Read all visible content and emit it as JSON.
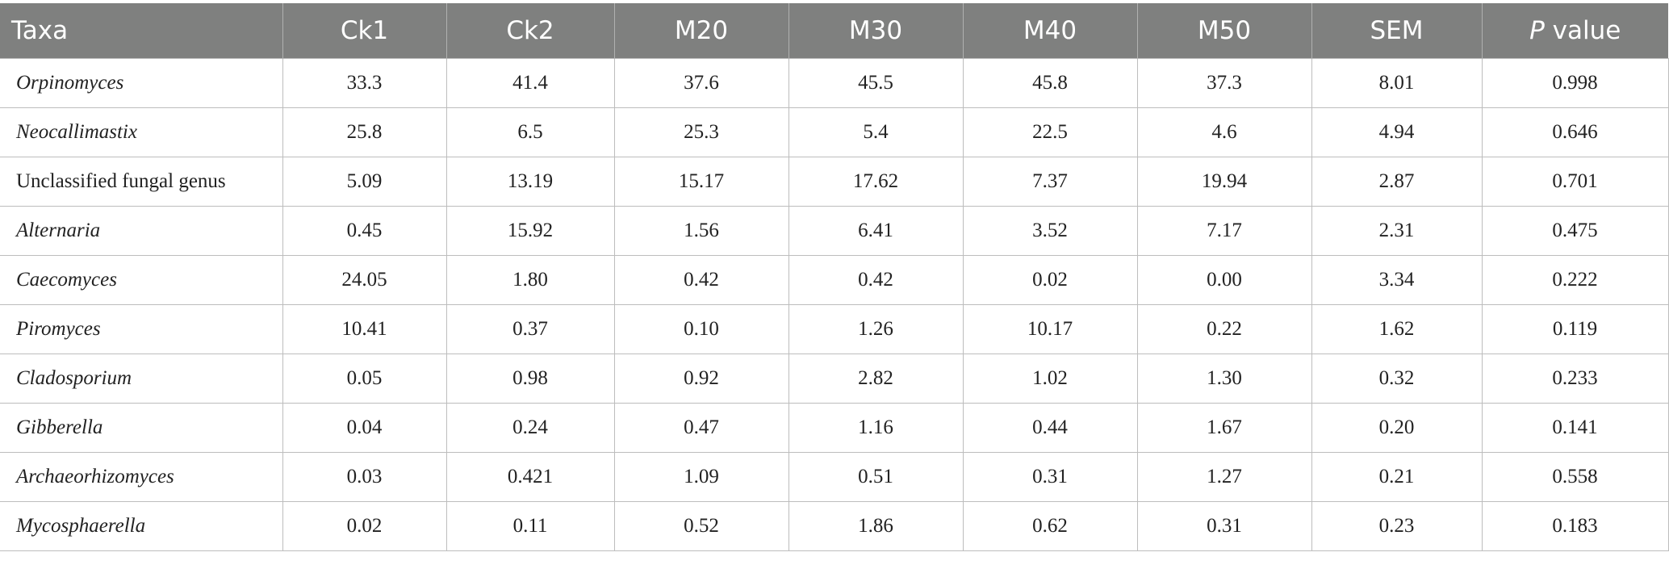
{
  "table": {
    "headers": [
      "Taxa",
      "Ck1",
      "Ck2",
      "M20",
      "M30",
      "M40",
      "M50",
      "SEM"
    ],
    "p_header_italic": "P",
    "p_header_rest": " value",
    "rows": [
      {
        "taxon": "Orpinomyces",
        "italic": true,
        "values": [
          "33.3",
          "41.4",
          "37.6",
          "45.5",
          "45.8",
          "37.3",
          "8.01",
          "0.998"
        ]
      },
      {
        "taxon": "Neocallimastix",
        "italic": true,
        "values": [
          "25.8",
          "6.5",
          "25.3",
          "5.4",
          "22.5",
          "4.6",
          "4.94",
          "0.646"
        ]
      },
      {
        "taxon": "Unclassified fungal genus",
        "italic": false,
        "values": [
          "5.09",
          "13.19",
          "15.17",
          "17.62",
          "7.37",
          "19.94",
          "2.87",
          "0.701"
        ]
      },
      {
        "taxon": "Alternaria",
        "italic": true,
        "values": [
          "0.45",
          "15.92",
          "1.56",
          "6.41",
          "3.52",
          "7.17",
          "2.31",
          "0.475"
        ]
      },
      {
        "taxon": "Caecomyces",
        "italic": true,
        "values": [
          "24.05",
          "1.80",
          "0.42",
          "0.42",
          "0.02",
          "0.00",
          "3.34",
          "0.222"
        ]
      },
      {
        "taxon": "Piromyces",
        "italic": true,
        "values": [
          "10.41",
          "0.37",
          "0.10",
          "1.26",
          "10.17",
          "0.22",
          "1.62",
          "0.119"
        ]
      },
      {
        "taxon": "Cladosporium",
        "italic": true,
        "values": [
          "0.05",
          "0.98",
          "0.92",
          "2.82",
          "1.02",
          "1.30",
          "0.32",
          "0.233"
        ]
      },
      {
        "taxon": "Gibberella",
        "italic": true,
        "values": [
          "0.04",
          "0.24",
          "0.47",
          "1.16",
          "0.44",
          "1.67",
          "0.20",
          "0.141"
        ]
      },
      {
        "taxon": "Archaeorhizomyces",
        "italic": true,
        "values": [
          "0.03",
          "0.421",
          "1.09",
          "0.51",
          "0.31",
          "1.27",
          "0.21",
          "0.558"
        ]
      },
      {
        "taxon": "Mycosphaerella",
        "italic": true,
        "values": [
          "0.02",
          "0.11",
          "0.52",
          "1.86",
          "0.62",
          "0.31",
          "0.23",
          "0.183"
        ]
      }
    ]
  }
}
